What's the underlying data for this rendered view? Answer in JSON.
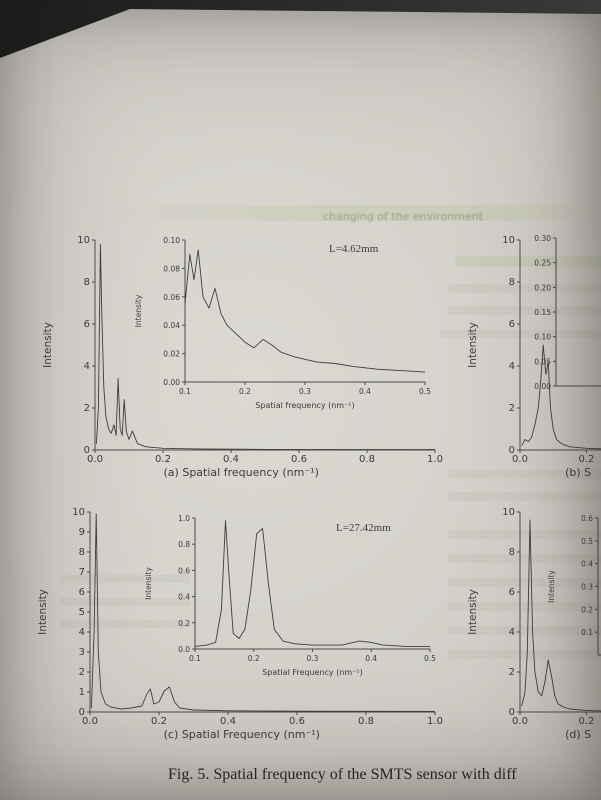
{
  "figure": {
    "caption": "Fig. 5. Spatial frequency of the SMTS sensor with diff"
  },
  "bleedthrough": {
    "fragment": "changing of the environment"
  },
  "chart_data": [
    {
      "id": "a-main",
      "type": "line",
      "ylabel": "Intensity",
      "xlabel": "(a) Spatial frequency (nm⁻¹)",
      "xlabel_frac": 0.43,
      "xlim": [
        0,
        1
      ],
      "ylim": [
        0,
        10
      ],
      "xticks": [
        0,
        0.2,
        0.4,
        0.6,
        0.8,
        1
      ],
      "xtick_labels": [
        "0.0",
        "0.2",
        "0.4",
        "0.6",
        "0.8",
        "1.0"
      ],
      "yticks": [
        0,
        2,
        4,
        6,
        8,
        10
      ],
      "ytick_labels": [
        "0",
        "2",
        "4",
        "6",
        "8",
        "10"
      ],
      "x": [
        0.004,
        0.01,
        0.016,
        0.02,
        0.026,
        0.032,
        0.04,
        0.048,
        0.056,
        0.062,
        0.068,
        0.074,
        0.08,
        0.086,
        0.092,
        0.1,
        0.11,
        0.125,
        0.15,
        0.2,
        0.3,
        0.5,
        1.0
      ],
      "y": [
        0.3,
        2.0,
        9.8,
        6.5,
        3.0,
        1.6,
        1.0,
        0.8,
        1.2,
        0.7,
        3.4,
        1.0,
        0.7,
        2.4,
        0.9,
        0.5,
        0.9,
        0.3,
        0.15,
        0.08,
        0.05,
        0.03,
        0.02
      ]
    },
    {
      "id": "a-inset",
      "type": "line",
      "ylabel": "Intensity",
      "xlabel": "Spatial frequency (nm⁻¹)",
      "annotation": "L=4.62mm",
      "annotation_pos": [
        0.6,
        0.02
      ],
      "xlim": [
        0.1,
        0.5
      ],
      "ylim": [
        0,
        0.1
      ],
      "xticks": [
        0.1,
        0.2,
        0.3,
        0.4,
        0.5
      ],
      "xtick_labels": [
        "0.1",
        "0.2",
        "0.3",
        "0.4",
        "0.5"
      ],
      "yticks": [
        0,
        0.02,
        0.04,
        0.06,
        0.08,
        0.1
      ],
      "ytick_labels": [
        "0.00",
        "0.02",
        "0.04",
        "0.06",
        "0.08",
        "0.10"
      ],
      "x": [
        0.1,
        0.108,
        0.115,
        0.122,
        0.13,
        0.14,
        0.15,
        0.16,
        0.17,
        0.185,
        0.2,
        0.215,
        0.23,
        0.245,
        0.26,
        0.28,
        0.3,
        0.32,
        0.35,
        0.38,
        0.42,
        0.46,
        0.5
      ],
      "y": [
        0.055,
        0.09,
        0.072,
        0.093,
        0.06,
        0.052,
        0.066,
        0.048,
        0.04,
        0.034,
        0.028,
        0.024,
        0.03,
        0.026,
        0.021,
        0.018,
        0.016,
        0.014,
        0.013,
        0.011,
        0.009,
        0.008,
        0.007
      ]
    },
    {
      "id": "b-main",
      "type": "line",
      "ylabel": "Intensity",
      "xlabel": "(b) S",
      "xlabel_frac": 0.35,
      "xlim": [
        0,
        0.5
      ],
      "ylim": [
        0,
        10
      ],
      "xticks": [
        0,
        0.2
      ],
      "xtick_labels": [
        "0.0",
        "0.2"
      ],
      "yticks": [
        0,
        2,
        4,
        6,
        8,
        10
      ],
      "ytick_labels": [
        "0",
        "2",
        "4",
        "6",
        "8",
        "10"
      ],
      "x": [
        0.005,
        0.015,
        0.025,
        0.035,
        0.045,
        0.055,
        0.062,
        0.07,
        0.078,
        0.085,
        0.092,
        0.1,
        0.11,
        0.125,
        0.15,
        0.2,
        0.25
      ],
      "y": [
        0.2,
        0.5,
        0.4,
        0.6,
        1.2,
        2.0,
        3.2,
        5.0,
        3.6,
        4.2,
        2.0,
        1.0,
        0.5,
        0.3,
        0.15,
        0.08,
        0.05
      ]
    },
    {
      "id": "b-inset",
      "type": "line",
      "xlim": [
        0,
        1
      ],
      "ylim": [
        0,
        0.3
      ],
      "yticks": [
        0.3,
        0.25,
        0.2,
        0.15,
        0.1,
        0.05,
        0
      ],
      "ytick_labels": [
        "0.30",
        "0.25",
        "0.20",
        "0.15",
        "0.10",
        "0.05",
        "0.00"
      ],
      "x": [],
      "y": []
    },
    {
      "id": "c-main",
      "type": "line",
      "ylabel": "Intensity",
      "xlabel": "(c) Spatial Frequency (nm⁻¹)",
      "xlabel_frac": 0.44,
      "xlim": [
        0,
        1
      ],
      "ylim": [
        0,
        10
      ],
      "xticks": [
        0,
        0.2,
        0.4,
        0.6,
        0.8,
        1
      ],
      "xtick_labels": [
        "0.0",
        "0.2",
        "0.4",
        "0.6",
        "0.8",
        "1.0"
      ],
      "yticks": [
        0,
        1,
        2,
        3,
        4,
        5,
        6,
        7,
        8,
        9,
        10
      ],
      "ytick_labels": [
        "0",
        "1",
        "2",
        "3",
        "4",
        "5",
        "6",
        "7",
        "8",
        "9",
        "10"
      ],
      "x": [
        0.004,
        0.012,
        0.018,
        0.024,
        0.032,
        0.045,
        0.06,
        0.09,
        0.12,
        0.15,
        0.165,
        0.175,
        0.185,
        0.2,
        0.215,
        0.23,
        0.245,
        0.26,
        0.3,
        0.4,
        0.6,
        1.0
      ],
      "y": [
        0.2,
        4.0,
        9.9,
        3.0,
        1.0,
        0.4,
        0.25,
        0.15,
        0.2,
        0.3,
        0.9,
        1.15,
        0.4,
        0.5,
        1.05,
        1.25,
        0.5,
        0.2,
        0.1,
        0.06,
        0.04,
        0.03
      ]
    },
    {
      "id": "c-inset",
      "type": "line",
      "ylabel": "Intensity",
      "xlabel": "Spatial Frequency (nm⁻¹)",
      "annotation": "L=27.42mm",
      "annotation_pos": [
        0.6,
        0.03
      ],
      "xlim": [
        0.1,
        0.5
      ],
      "ylim": [
        0,
        1.0
      ],
      "xticks": [
        0.1,
        0.2,
        0.3,
        0.4,
        0.5
      ],
      "xtick_labels": [
        "0.1",
        "0.2",
        "0.3",
        "0.4",
        "0.5"
      ],
      "yticks": [
        0,
        0.2,
        0.4,
        0.6,
        0.8,
        1.0
      ],
      "ytick_labels": [
        "0.0",
        "0.2",
        "0.4",
        "0.6",
        "0.8",
        "1.0"
      ],
      "x": [
        0.1,
        0.12,
        0.135,
        0.145,
        0.152,
        0.158,
        0.165,
        0.175,
        0.185,
        0.195,
        0.205,
        0.215,
        0.225,
        0.235,
        0.25,
        0.27,
        0.3,
        0.35,
        0.38,
        0.4,
        0.42,
        0.46,
        0.5
      ],
      "y": [
        0.02,
        0.03,
        0.05,
        0.3,
        0.98,
        0.55,
        0.12,
        0.08,
        0.15,
        0.45,
        0.88,
        0.92,
        0.5,
        0.15,
        0.06,
        0.04,
        0.03,
        0.03,
        0.06,
        0.05,
        0.03,
        0.02,
        0.02
      ]
    },
    {
      "id": "d-main",
      "type": "line",
      "ylabel": "Intensity",
      "xlabel": "(d) S",
      "xlabel_frac": 0.35,
      "xlim": [
        0,
        0.5
      ],
      "ylim": [
        0,
        10
      ],
      "xticks": [
        0,
        0.2
      ],
      "xtick_labels": [
        "0.0",
        "0.2"
      ],
      "yticks": [
        0,
        2,
        4,
        6,
        8,
        10
      ],
      "ytick_labels": [
        "0",
        "2",
        "4",
        "6",
        "8",
        "10"
      ],
      "x": [
        0.005,
        0.015,
        0.022,
        0.03,
        0.038,
        0.045,
        0.055,
        0.065,
        0.075,
        0.085,
        0.095,
        0.105,
        0.115,
        0.13,
        0.15,
        0.2,
        0.25
      ],
      "y": [
        0.3,
        1.0,
        3.0,
        9.6,
        4.0,
        2.0,
        1.0,
        0.8,
        1.5,
        2.6,
        1.8,
        0.8,
        0.4,
        0.25,
        0.15,
        0.08,
        0.05
      ]
    },
    {
      "id": "d-inset",
      "type": "line",
      "ylabel": "Intensity",
      "xlim": [
        0,
        1
      ],
      "ylim": [
        0,
        0.6
      ],
      "yticks": [
        0.6,
        0.5,
        0.4,
        0.3,
        0.2,
        0.1
      ],
      "ytick_labels": [
        "0.6",
        "0.5",
        "0.4",
        "0.3",
        "0.2",
        "0.1"
      ],
      "x": [],
      "y": []
    }
  ]
}
